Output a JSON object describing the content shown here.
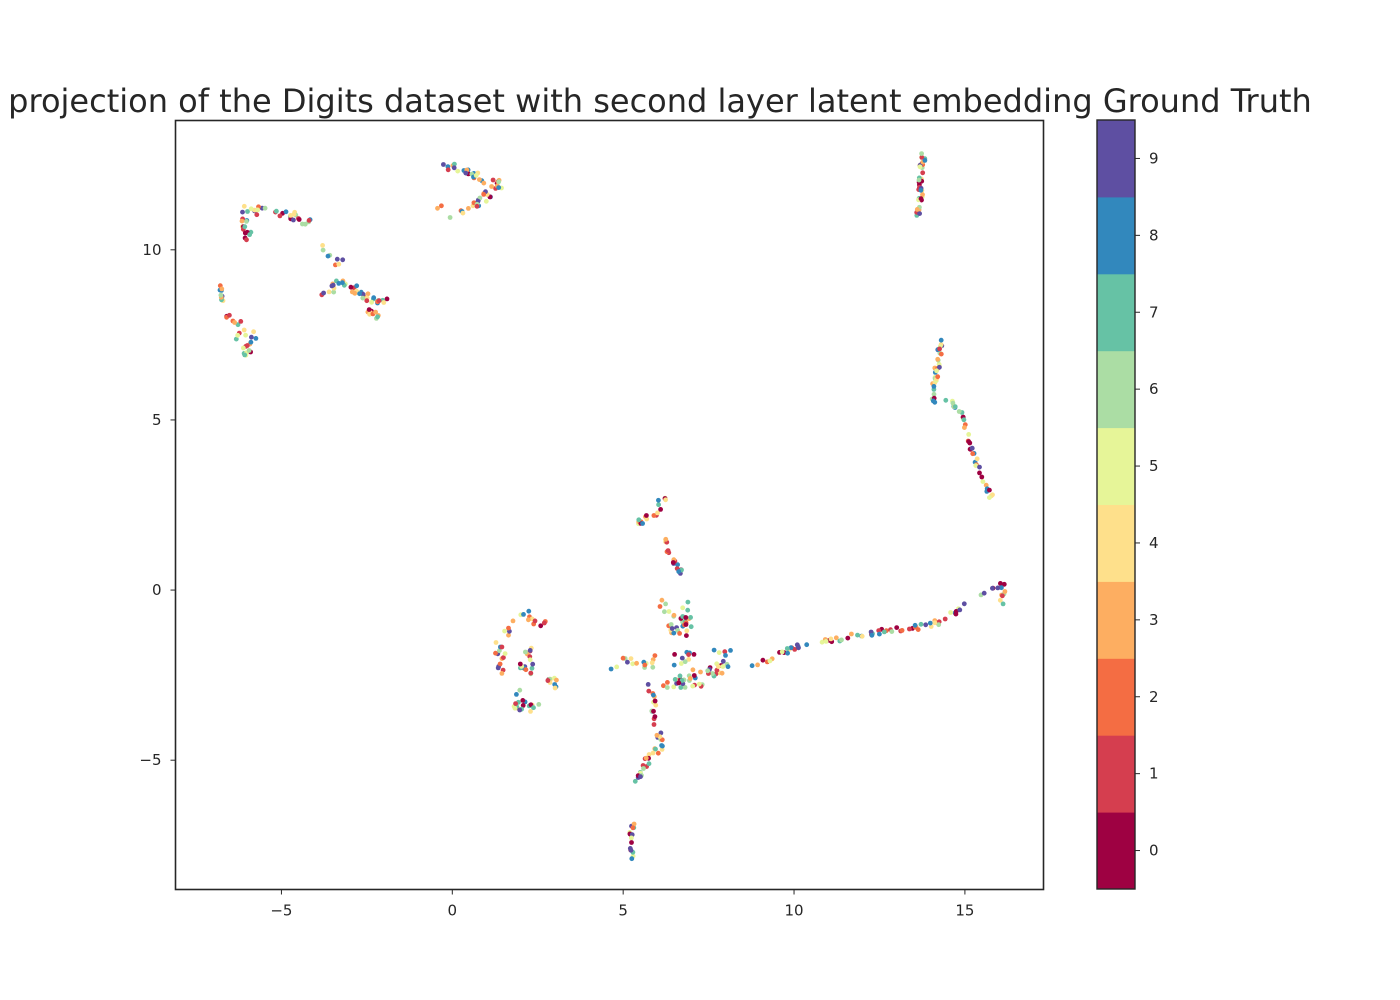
{
  "chart_data": {
    "type": "scatter",
    "title": "projection of the Digits dataset with second layer latent embedding Ground Truth",
    "xlabel": "",
    "ylabel": "",
    "xlim": [
      -8.1,
      17.3
    ],
    "ylim": [
      -8.8,
      13.8
    ],
    "x_ticks": [
      -5,
      0,
      5,
      10,
      15
    ],
    "y_ticks": [
      -5,
      0,
      5,
      10
    ],
    "grid": false,
    "colorbar": {
      "range": [
        -0.5,
        9.5
      ],
      "ticks": [
        0,
        1,
        2,
        3,
        4,
        5,
        6,
        7,
        8,
        9
      ],
      "colors": [
        "#9e0142",
        "#d53e4f",
        "#f46d43",
        "#fdae61",
        "#fee08b",
        "#e6f598",
        "#abdda4",
        "#66c2a5",
        "#3288bd",
        "#5e4fa2"
      ]
    },
    "clusters": [
      {
        "points": [
          [
            -0.4,
            12.6
          ],
          [
            0.3,
            12.3
          ],
          [
            1.0,
            12.0
          ],
          [
            1.4,
            11.95
          ],
          [
            0.9,
            11.5
          ],
          [
            0.5,
            11.2
          ],
          [
            0.0,
            11.0
          ],
          [
            -0.4,
            11.3
          ]
        ],
        "spread": 0.12,
        "count": 55
      },
      {
        "points": [
          [
            -6.2,
            11.0
          ],
          [
            -5.9,
            11.2
          ],
          [
            -5.3,
            11.1
          ],
          [
            -4.6,
            11.0
          ],
          [
            -4.2,
            10.8
          ]
        ],
        "spread": 0.14,
        "count": 30
      },
      {
        "points": [
          [
            -6.1,
            10.9
          ],
          [
            -6.0,
            10.4
          ],
          [
            -5.9,
            10.6
          ]
        ],
        "spread": 0.12,
        "count": 14
      },
      {
        "points": [
          [
            -3.9,
            10.3
          ],
          [
            -3.4,
            9.6
          ],
          [
            -3.2,
            9.8
          ]
        ],
        "spread": 0.1,
        "count": 8
      },
      {
        "points": [
          [
            -6.7,
            9.0
          ],
          [
            -6.8,
            8.7
          ],
          [
            -6.7,
            8.5
          ]
        ],
        "spread": 0.06,
        "count": 10
      },
      {
        "points": [
          [
            -3.8,
            8.7
          ],
          [
            -3.3,
            9.0
          ],
          [
            -2.8,
            8.8
          ],
          [
            -2.5,
            8.6
          ],
          [
            -2.2,
            8.5
          ],
          [
            -2.0,
            8.45
          ]
        ],
        "spread": 0.12,
        "count": 40
      },
      {
        "points": [
          [
            -2.5,
            8.2
          ],
          [
            -2.2,
            8.0
          ]
        ],
        "spread": 0.1,
        "count": 10
      },
      {
        "points": [
          [
            -6.6,
            8.05
          ],
          [
            -6.3,
            7.9
          ],
          [
            -6.1,
            7.6
          ],
          [
            -6.3,
            7.5
          ],
          [
            -6.0,
            7.0
          ],
          [
            -6.0,
            6.8
          ],
          [
            -5.7,
            7.7
          ]
        ],
        "spread": 0.12,
        "count": 26
      },
      {
        "points": [
          [
            13.8,
            12.8
          ],
          [
            13.7,
            12.2
          ],
          [
            13.7,
            11.6
          ],
          [
            13.6,
            11.0
          ]
        ],
        "spread": 0.07,
        "count": 40
      },
      {
        "points": [
          [
            14.3,
            7.3
          ],
          [
            14.2,
            6.6
          ],
          [
            14.1,
            6.0
          ],
          [
            14.1,
            5.5
          ]
        ],
        "spread": 0.07,
        "count": 32
      },
      {
        "points": [
          [
            14.2,
            5.55
          ],
          [
            14.6,
            5.6
          ],
          [
            14.9,
            5.1
          ],
          [
            15.2,
            4.2
          ],
          [
            15.4,
            3.6
          ],
          [
            15.6,
            3.1
          ],
          [
            15.8,
            2.65
          ]
        ],
        "spread": 0.06,
        "count": 40
      },
      {
        "points": [
          [
            6.2,
            2.8
          ],
          [
            6.0,
            2.3
          ],
          [
            5.6,
            2.05
          ],
          [
            5.3,
            1.9
          ]
        ],
        "spread": 0.08,
        "count": 18
      },
      {
        "points": [
          [
            6.2,
            1.6
          ],
          [
            6.3,
            1.2
          ],
          [
            6.5,
            0.8
          ],
          [
            6.7,
            0.5
          ]
        ],
        "spread": 0.06,
        "count": 18
      },
      {
        "points": [
          [
            5.9,
            -0.25
          ],
          [
            6.2,
            -0.5
          ],
          [
            6.5,
            -0.8
          ],
          [
            6.7,
            -0.9
          ],
          [
            6.4,
            -1.2
          ],
          [
            6.9,
            -1.2
          ],
          [
            6.8,
            -0.4
          ]
        ],
        "spread": 0.15,
        "count": 35
      },
      {
        "points": [
          [
            8.7,
            -2.3
          ],
          [
            9.3,
            -2.0
          ],
          [
            10.0,
            -1.7
          ],
          [
            11.0,
            -1.5
          ],
          [
            12.0,
            -1.3
          ],
          [
            13.0,
            -1.15
          ],
          [
            14.0,
            -1.05
          ],
          [
            14.5,
            -0.8
          ],
          [
            15.0,
            -0.5
          ],
          [
            15.4,
            -0.2
          ],
          [
            15.8,
            0.1
          ],
          [
            16.1,
            0.2
          ],
          [
            16.1,
            -0.6
          ]
        ],
        "spread": 0.08,
        "count": 85
      },
      {
        "points": [
          [
            4.5,
            -2.3
          ],
          [
            5.2,
            -2.1
          ],
          [
            6.0,
            -2.1
          ],
          [
            6.8,
            -2.0
          ],
          [
            7.4,
            -1.8
          ],
          [
            8.0,
            -2.3
          ],
          [
            6.7,
            -2.5
          ],
          [
            7.0,
            -2.8
          ],
          [
            6.2,
            -2.8
          ],
          [
            7.4,
            -2.6
          ],
          [
            8.2,
            -1.7
          ]
        ],
        "spread": 0.18,
        "count": 75
      },
      {
        "points": [
          [
            5.8,
            -2.8
          ],
          [
            5.9,
            -3.5
          ],
          [
            6.0,
            -4.2
          ],
          [
            6.2,
            -4.6
          ],
          [
            5.8,
            -4.8
          ],
          [
            5.6,
            -5.2
          ],
          [
            5.4,
            -5.6
          ]
        ],
        "spread": 0.08,
        "count": 42
      },
      {
        "points": [
          [
            5.3,
            -6.9
          ],
          [
            5.2,
            -7.3
          ],
          [
            5.25,
            -7.7
          ],
          [
            5.3,
            -7.9
          ]
        ],
        "spread": 0.05,
        "count": 16
      },
      {
        "points": [
          [
            1.1,
            -1.6
          ],
          [
            1.4,
            -1.7
          ],
          [
            1.3,
            -2.2
          ],
          [
            1.4,
            -2.4
          ],
          [
            1.6,
            -1.2
          ],
          [
            1.8,
            -1.0
          ],
          [
            2.1,
            -0.7
          ],
          [
            2.3,
            -0.8
          ],
          [
            2.6,
            -1.1
          ],
          [
            2.8,
            -1.0
          ]
        ],
        "spread": 0.12,
        "count": 30
      },
      {
        "points": [
          [
            2.2,
            -1.7
          ],
          [
            2.3,
            -2.3
          ],
          [
            2.0,
            -2.2
          ],
          [
            2.5,
            -2.6
          ],
          [
            3.0,
            -2.7
          ],
          [
            3.0,
            -2.9
          ]
        ],
        "spread": 0.12,
        "count": 30
      },
      {
        "points": [
          [
            1.9,
            -3.0
          ],
          [
            2.1,
            -3.2
          ],
          [
            1.8,
            -3.4
          ],
          [
            2.2,
            -3.5
          ],
          [
            2.5,
            -3.3
          ]
        ],
        "spread": 0.1,
        "count": 20
      }
    ]
  }
}
